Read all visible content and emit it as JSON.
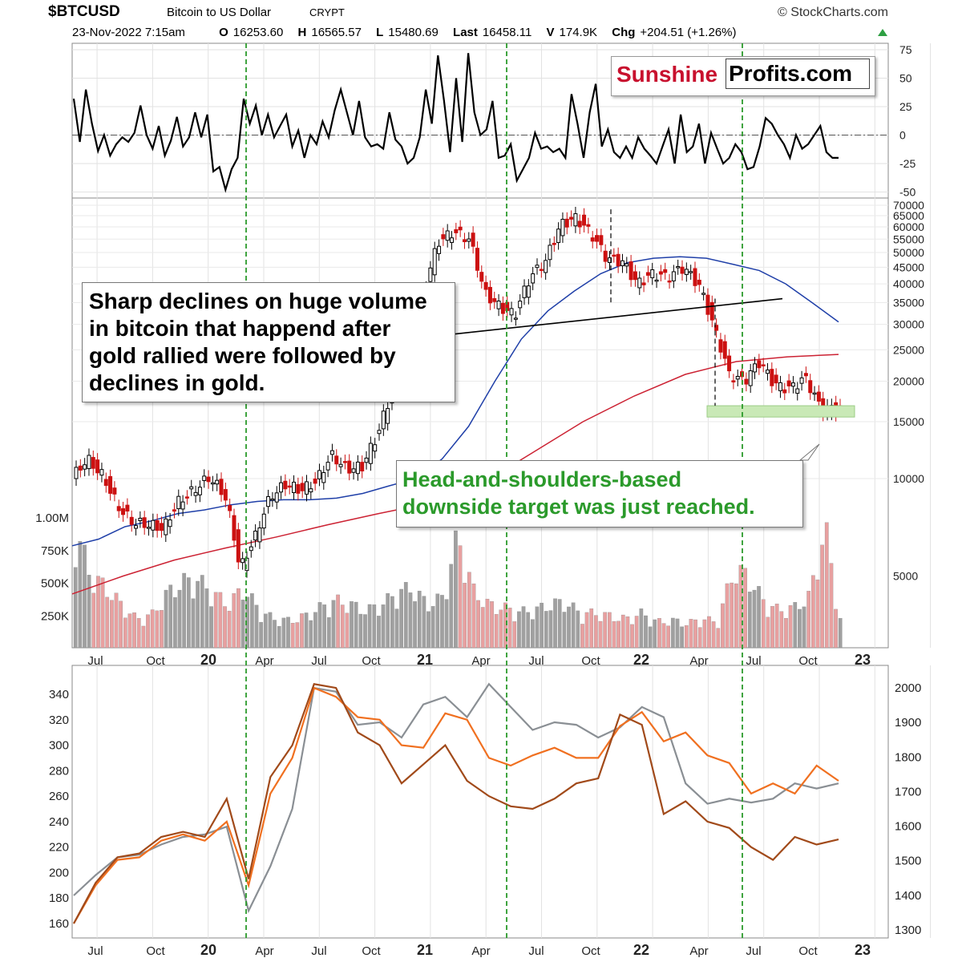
{
  "header": {
    "symbol": "$BTCUSD",
    "name": "Bitcoin to US Dollar",
    "exchange": "CRYPT",
    "credit": "© StockCharts.com",
    "date": "23-Nov-2022 7:15am",
    "o_label": "O",
    "o_value": "16253.60",
    "h_label": "H",
    "h_value": "16565.57",
    "l_label": "L",
    "l_value": "15480.69",
    "last_label": "Last",
    "last_value": "16458.11",
    "v_label": "V",
    "v_value": "174.9K",
    "chg_label": "Chg",
    "chg_value": "+204.51 (+1.26%)",
    "chg_color": "#2ea043"
  },
  "logo": {
    "part1": "Sunshine",
    "part2": "Profits.com",
    "part1_color": "#c8102e"
  },
  "callouts": {
    "black": [
      "Sharp declines on huge volume",
      "in bitcoin that happend after",
      "gold rallied were followed by",
      "declines in gold."
    ],
    "green": [
      "Head-and-shoulders-based",
      "downside target was just reached."
    ],
    "green_color": "#2b9a2b"
  },
  "colors": {
    "up": "#000000",
    "down": "#cc1111",
    "vol_up": "#a0a0a0",
    "vol_down": "#e8a0a0",
    "ma_blue": "#1f3fa8",
    "ma_red": "#cc2233",
    "guides": "#2b9a2b",
    "target_fill": "#c9e9b6",
    "gold": "#8a8f94",
    "orange": "#f07020",
    "brown": "#a14a1a"
  },
  "chart_data": [
    {
      "type": "line",
      "panel": "oscillator",
      "yticks": [
        "75",
        "50",
        "25",
        "0",
        "-25",
        "-50"
      ],
      "ylim": [
        -50,
        75
      ],
      "series": [
        {
          "values": [
            32,
            -6,
            40,
            10,
            -14,
            0,
            -18,
            -8,
            -2,
            -6,
            2,
            26,
            0,
            -12,
            8,
            -18,
            -5,
            16,
            -10,
            -2,
            20,
            -2,
            18,
            -32,
            -28,
            -48,
            -30,
            -20,
            32,
            10,
            26,
            0,
            18,
            -2,
            8,
            18,
            -10,
            4,
            -20,
            0,
            -8,
            12,
            -2,
            22,
            40,
            20,
            0,
            30,
            -2,
            -10,
            -8,
            -12,
            20,
            -4,
            -10,
            -25,
            -20,
            -2,
            40,
            10,
            70,
            30,
            -15,
            50,
            -6,
            72,
            20,
            0,
            5,
            30,
            -20,
            -18,
            -8,
            -40,
            -30,
            -20,
            2,
            -12,
            -10,
            -15,
            -12,
            -20,
            36,
            10,
            -20,
            20,
            45,
            -10,
            5,
            -15,
            -20,
            -10,
            -20,
            -2,
            -12,
            -18,
            -25,
            -10,
            5,
            -25,
            18,
            -15,
            -10,
            10,
            -25,
            2,
            -12,
            -25,
            -20,
            -8,
            -15,
            -30,
            -28,
            -10,
            15,
            10,
            0,
            -8,
            -20,
            0,
            -12,
            -8,
            0,
            8,
            -15,
            -20,
            -20
          ]
        }
      ]
    },
    {
      "type": "candlestick",
      "panel": "price",
      "scale": "log",
      "y_tick_labels": [
        "70000",
        "65000",
        "60000",
        "55000",
        "50000",
        "45000",
        "40000",
        "35000",
        "30000",
        "25000",
        "20000",
        "15000",
        "10000",
        "5000"
      ],
      "x_tick_labels": [
        "Jul",
        "Oct",
        "20",
        "Apr",
        "Jul",
        "Oct",
        "21",
        "Apr",
        "Jul",
        "Oct",
        "22",
        "Apr",
        "Jul",
        "Oct",
        "23"
      ],
      "volume_tick_labels": [
        "1.00M",
        "750K",
        "500K",
        "250K"
      ],
      "close_approx": [
        10000,
        11500,
        10200,
        8200,
        7300,
        7200,
        7000,
        8500,
        9200,
        10100,
        8900,
        5200,
        6600,
        8800,
        9600,
        9200,
        9800,
        11800,
        10700,
        10900,
        13600,
        18700,
        29000,
        37000,
        54000,
        58000,
        55000,
        37500,
        34000,
        32000,
        42000,
        47000,
        61000,
        64000,
        57000,
        48000,
        47000,
        40000,
        43000,
        42000,
        45000,
        40000,
        29500,
        21000,
        20000,
        23000,
        19500,
        19000,
        20500,
        16500,
        16458
      ],
      "volume_approx": [
        820000,
        500000,
        420000,
        300000,
        200000,
        230000,
        380000,
        460000,
        470000,
        380000,
        300000,
        420000,
        260000,
        200000,
        190000,
        220000,
        280000,
        330000,
        300000,
        260000,
        300000,
        380000,
        420000,
        300000,
        350000,
        780000,
        400000,
        300000,
        280000,
        250000,
        260000,
        300000,
        320000,
        240000,
        240000,
        220000,
        200000,
        240000,
        180000,
        190000,
        170000,
        200000,
        180000,
        540000,
        500000,
        320000,
        260000,
        280000,
        360000,
        840000,
        200000
      ],
      "moving_averages": {
        "blue_approx": [
          6200,
          6500,
          7100,
          7400,
          7800,
          8000,
          8300,
          8500,
          8600,
          8600,
          8700,
          9000,
          9500,
          10000,
          11500,
          14500,
          20000,
          27000,
          33000,
          38000,
          43000,
          46500,
          48000,
          48500,
          48000,
          46000,
          44000,
          40000,
          35000,
          30500
        ],
        "red_approx": [
          4400,
          5000,
          5600,
          6100,
          6600,
          7200,
          7800,
          8400,
          9600,
          12000,
          15000,
          18000,
          21000,
          23000,
          23800,
          24200
        ]
      },
      "annotations": {
        "neckline_approx": [
          28000,
          36000
        ],
        "target_zone_approx": [
          15500,
          16800
        ]
      }
    },
    {
      "type": "line",
      "panel": "gold_miners",
      "left_ticks": [
        "340",
        "320",
        "300",
        "280",
        "260",
        "240",
        "220",
        "200",
        "180",
        "160"
      ],
      "right_ticks": [
        "2000",
        "1900",
        "1800",
        "1700",
        "1600",
        "1500",
        "1400",
        "1300"
      ],
      "x_tick_labels": [
        "Jul",
        "Oct",
        "20",
        "Apr",
        "Jul",
        "Oct",
        "21",
        "Apr",
        "Jul",
        "Oct",
        "22",
        "Apr",
        "Jul",
        "Oct",
        "23"
      ],
      "series": [
        {
          "color": "gray",
          "values": [
            182,
            198,
            212,
            214,
            222,
            228,
            230,
            236,
            170,
            205,
            250,
            345,
            342,
            316,
            318,
            306,
            332,
            338,
            322,
            348,
            330,
            312,
            318,
            316,
            306,
            314,
            330,
            322,
            270,
            254,
            258,
            255,
            258,
            270,
            266,
            270
          ]
        },
        {
          "color": "orange",
          "values": [
            160,
            190,
            210,
            212,
            225,
            230,
            225,
            240,
            190,
            262,
            290,
            345,
            338,
            322,
            320,
            300,
            298,
            325,
            320,
            290,
            284,
            292,
            298,
            290,
            290,
            315,
            326,
            303,
            310,
            292,
            286,
            262,
            270,
            262,
            284,
            272
          ]
        },
        {
          "color": "brown",
          "values": [
            160,
            192,
            212,
            215,
            228,
            232,
            228,
            258,
            195,
            275,
            300,
            348,
            345,
            310,
            300,
            270,
            285,
            300,
            272,
            260,
            252,
            250,
            258,
            270,
            274,
            324,
            316,
            246,
            256,
            240,
            235,
            220,
            210,
            228,
            222,
            226
          ]
        }
      ]
    }
  ]
}
